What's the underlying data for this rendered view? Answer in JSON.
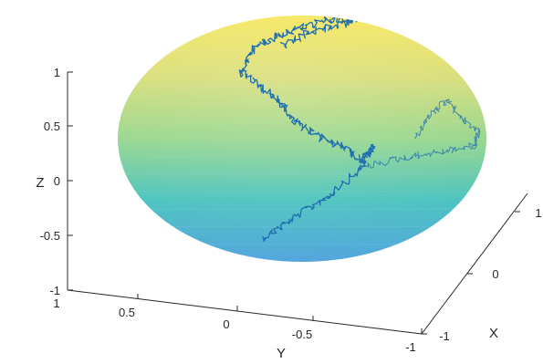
{
  "chart_data": {
    "type": "surface3d",
    "surface": "sphere",
    "colormap": "parula",
    "surface_alpha": 0.6,
    "trajectory_color": "#1f6fb0",
    "axes": {
      "x": {
        "label": "X",
        "ticks": [
          "-1",
          "0",
          "1"
        ]
      },
      "y": {
        "label": "Y",
        "ticks": [
          "1",
          "0.5",
          "0",
          "-0.5",
          "-1"
        ]
      },
      "z": {
        "label": "Z",
        "ticks": [
          "-1",
          "-0.5",
          "0",
          "0.5",
          "1"
        ]
      }
    },
    "lim": {
      "x": [
        -1,
        1
      ],
      "y": [
        -1,
        1
      ],
      "z": [
        -1,
        1
      ]
    },
    "grid": false,
    "trajectory_note_values": "random-walk path on sphere surface (values not labeled)"
  }
}
